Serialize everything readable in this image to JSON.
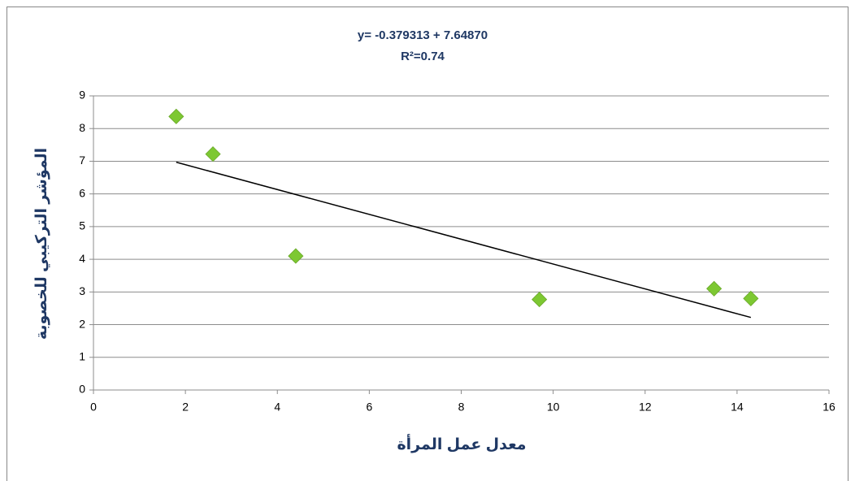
{
  "chart_data": {
    "type": "scatter",
    "title": "y= -0.379313 + 7.64870",
    "subtitle": "R²=0.74",
    "x_label": "معدل عمل المرأة",
    "y_label": "المؤشر التركيبي للخصوبة",
    "series": [
      {
        "name": "",
        "color": "#7dc832",
        "x": [
          1.8,
          2.6,
          4.4,
          9.7,
          13.5,
          14.3
        ],
        "values": [
          8.37,
          7.22,
          4.1,
          2.77,
          3.1,
          2.8
        ]
      }
    ],
    "trendline": {
      "x": [
        1.8,
        14.3
      ],
      "y": [
        6.97,
        2.22
      ],
      "color": "#000000"
    },
    "xlim": [
      0,
      16
    ],
    "xticks": [
      0,
      2,
      4,
      6,
      8,
      10,
      12,
      14,
      16
    ],
    "ylim": [
      0,
      9
    ],
    "yticks": [
      0,
      1,
      2,
      3,
      4,
      5,
      6,
      7,
      8,
      9
    ],
    "grid": true
  }
}
